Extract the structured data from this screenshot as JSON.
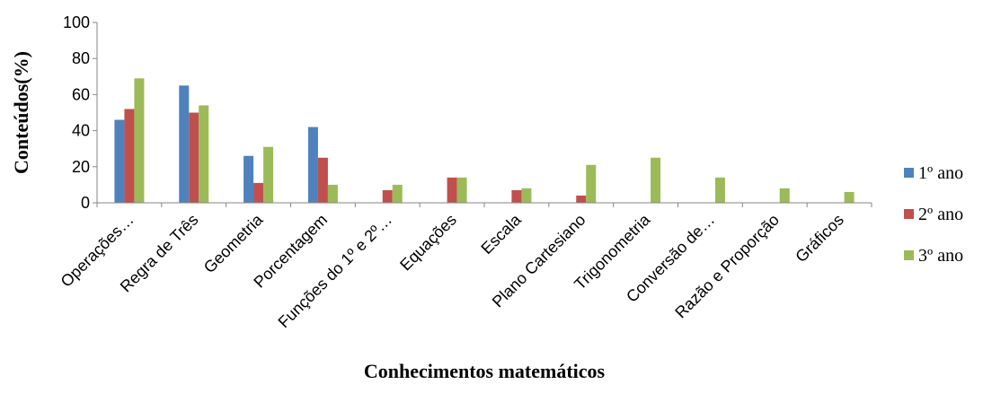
{
  "chart_data": {
    "type": "bar",
    "categories": [
      "Operações…",
      "Regra de Três",
      "Geometria",
      "Porcentagem",
      "Funções do 1º e 2º…",
      "Equações",
      "Escala",
      "Plano Cartesiano",
      "Trigonometria",
      "Conversão de…",
      "Razão e Proporção",
      "Gráficos"
    ],
    "series": [
      {
        "name": "1º ano",
        "color": "#4F81BD",
        "values": [
          46,
          65,
          26,
          42,
          0,
          0,
          0,
          0,
          0,
          0,
          0,
          0
        ]
      },
      {
        "name": "2º ano",
        "color": "#C0504D",
        "values": [
          52,
          50,
          11,
          25,
          7,
          14,
          7,
          4,
          0,
          0,
          0,
          0
        ]
      },
      {
        "name": "3º ano",
        "color": "#9BBB59",
        "values": [
          69,
          54,
          31,
          10,
          10,
          14,
          8,
          21,
          25,
          14,
          8,
          6
        ]
      }
    ],
    "xlabel": "Conhecimentos matemáticos",
    "ylabel": "Conteúdos(%)",
    "ylim": [
      0,
      100
    ],
    "yticks": [
      0,
      20,
      40,
      60,
      80,
      100
    ],
    "grid": false,
    "legend_position": "right"
  }
}
